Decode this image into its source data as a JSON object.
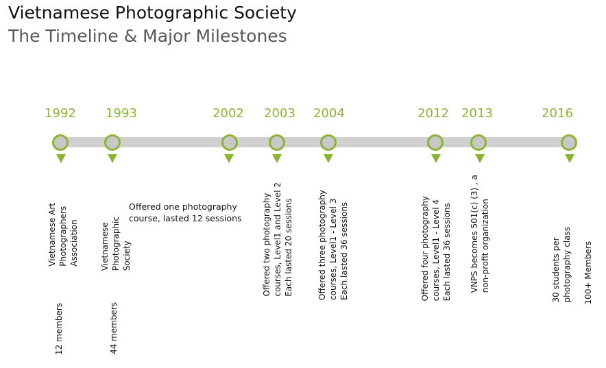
{
  "title": "Vietnamese Photographic Society",
  "subtitle": "The Timeline & Major Milestones",
  "colors": {
    "accent": "#8ab533",
    "bar": "#d0d0d0",
    "subtitle": "#595959"
  },
  "milestones": [
    {
      "year": "1992",
      "event": "Vietnamese Art\nPhotographers\nAssociation",
      "detail": "12 members"
    },
    {
      "year": "1993",
      "event": "Vietnamese\nPhotographic\nSociety",
      "detail": "44 members"
    },
    {
      "year": "2002",
      "event": "Offered one photography\ncourse, lasted 12 sessions"
    },
    {
      "year": "2003",
      "event": "Offered two photography\ncourses, Level1 and Level 2\nEach lasted 20 sessions"
    },
    {
      "year": "2004",
      "event": "Offered three photography\ncourses, Level1 - Level 3\nEach lasted 36 sessions"
    },
    {
      "year": "2012",
      "event": "Offered four photography\ncourses, Level1 - Level 4\nEach lasted 36 sessions"
    },
    {
      "year": "2013",
      "event": "VNPS becomes 501(c) (3) , a\nnon-profit organization"
    },
    {
      "year": "2016",
      "event": "30 students per\nphotography class",
      "detail": "100+ Members"
    }
  ]
}
